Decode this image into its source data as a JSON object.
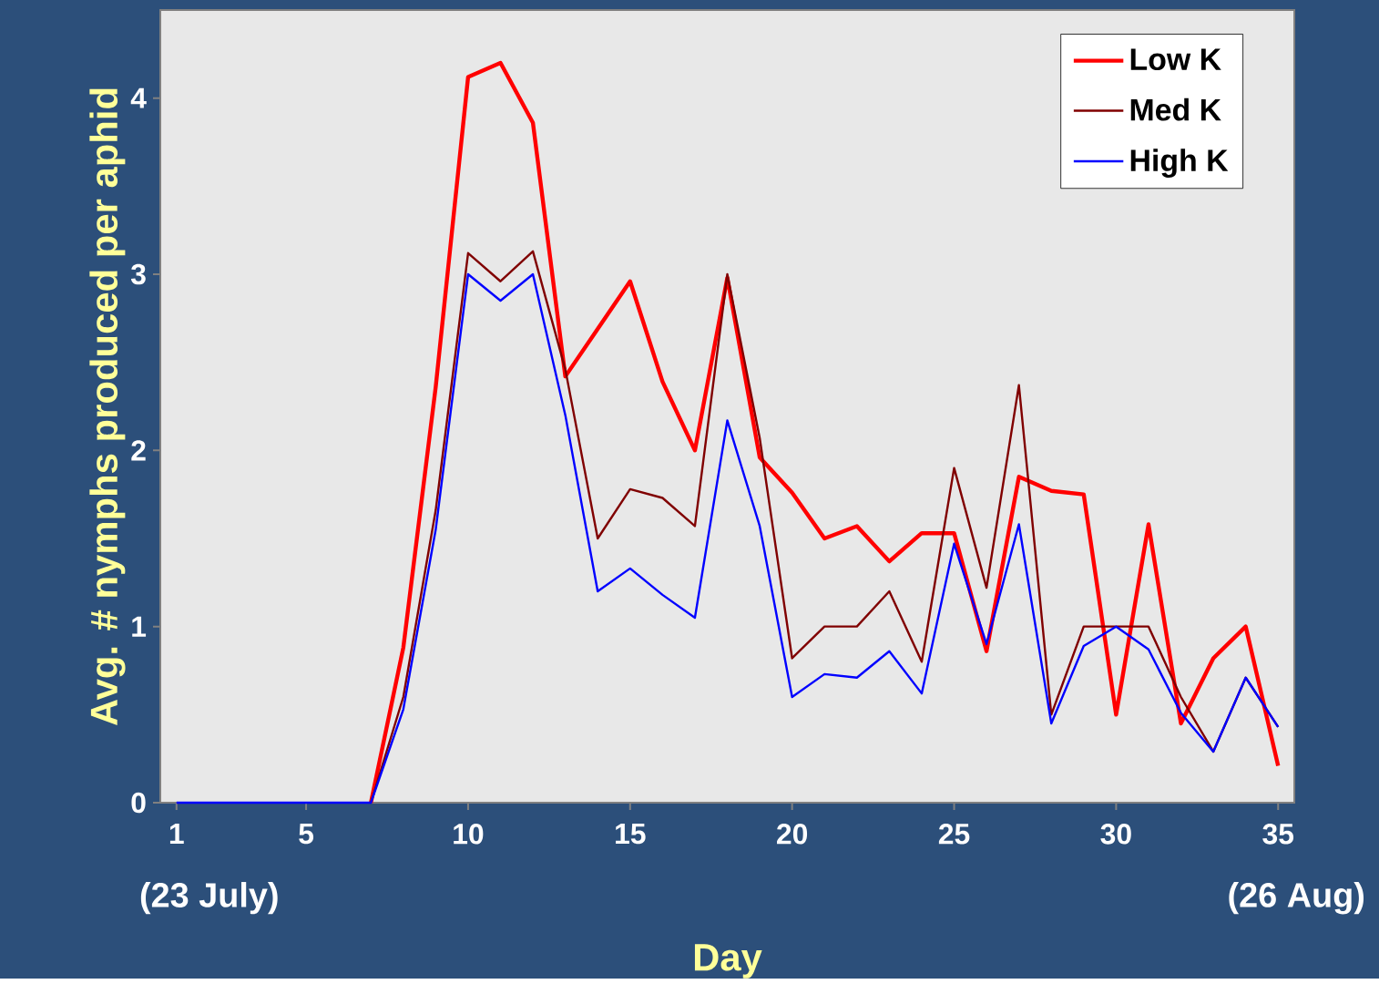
{
  "chart_data": {
    "type": "line",
    "xlabel": "Day",
    "ylabel": "Avg. # nymphs produced per aphid",
    "x": [
      1,
      2,
      3,
      4,
      5,
      6,
      7,
      8,
      9,
      10,
      11,
      12,
      13,
      14,
      15,
      16,
      17,
      18,
      19,
      20,
      21,
      22,
      23,
      24,
      25,
      26,
      27,
      28,
      29,
      30,
      31,
      32,
      33,
      34,
      35
    ],
    "series": [
      {
        "name": "Low K",
        "color": "#ff0000",
        "values": [
          null,
          null,
          null,
          null,
          null,
          null,
          0,
          0.88,
          2.36,
          4.12,
          4.2,
          3.86,
          2.42,
          2.69,
          2.96,
          2.39,
          2.0,
          2.98,
          1.96,
          1.76,
          1.5,
          1.57,
          1.37,
          1.53,
          1.53,
          0.86,
          1.85,
          1.77,
          1.75,
          0.5,
          1.58,
          0.45,
          0.82,
          1.0,
          0.21
        ]
      },
      {
        "name": "Med K",
        "color": "#800000",
        "values": [
          null,
          null,
          null,
          null,
          null,
          null,
          0,
          0.6,
          1.66,
          3.12,
          2.96,
          3.13,
          2.46,
          1.5,
          1.78,
          1.73,
          1.57,
          3.0,
          2.07,
          0.82,
          1.0,
          1.0,
          1.2,
          0.8,
          1.9,
          1.22,
          2.37,
          0.5,
          1.0,
          1.0,
          1.0,
          0.6,
          0.29,
          0.71,
          0.43
        ]
      },
      {
        "name": "High K",
        "color": "#0000ff",
        "values": [
          0,
          0,
          0,
          0,
          0,
          0,
          0,
          0.53,
          1.55,
          3.0,
          2.85,
          3.0,
          2.2,
          1.2,
          1.33,
          1.18,
          1.05,
          2.17,
          1.57,
          0.6,
          0.73,
          0.71,
          0.86,
          0.62,
          1.47,
          0.9,
          1.58,
          0.45,
          0.89,
          1.0,
          0.87,
          0.51,
          0.29,
          0.71,
          0.43
        ]
      }
    ],
    "xlim": [
      0.5,
      35.5
    ],
    "ylim": [
      0,
      4.5
    ],
    "xticks": [
      1,
      5,
      10,
      15,
      20,
      25,
      30,
      35
    ],
    "yticks": [
      0,
      1,
      2,
      3,
      4
    ],
    "annotations": [
      "(23 July)",
      "(26 Aug)"
    ],
    "legend": "top right",
    "grid": false,
    "marker": "none",
    "line_style": "solid"
  }
}
